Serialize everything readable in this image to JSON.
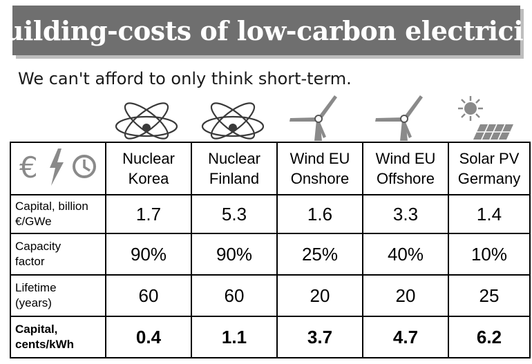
{
  "title": "Building-costs of low-carbon electricity",
  "subtitle": "We can't afford to only think short-term.",
  "chart_data": {
    "type": "table",
    "columns": [
      {
        "line1": "Nuclear",
        "line2": "Korea",
        "icon": "atom-icon"
      },
      {
        "line1": "Nuclear",
        "line2": "Finland",
        "icon": "atom-icon"
      },
      {
        "line1": "Wind EU",
        "line2": "Onshore",
        "icon": "wind-turbine-icon"
      },
      {
        "line1": "Wind EU",
        "line2": "Offshore",
        "icon": "wind-turbine-icon"
      },
      {
        "line1": "Solar PV",
        "line2": "Germany",
        "icon": "solar-panel-icon"
      }
    ],
    "header_icons": [
      "euro-icon",
      "lightning-icon",
      "clock-icon"
    ],
    "rows": [
      {
        "label_line1": "Capital, billion",
        "label_line2": "€/GWe",
        "values": [
          "1.7",
          "5.3",
          "1.6",
          "3.3",
          "1.4"
        ]
      },
      {
        "label_line1": "Capacity",
        "label_line2": "factor",
        "values": [
          "90%",
          "90%",
          "25%",
          "40%",
          "10%"
        ]
      },
      {
        "label_line1": "Lifetime",
        "label_line2": "(years)",
        "values": [
          "60",
          "60",
          "20",
          "20",
          "25"
        ]
      },
      {
        "label_line1": "Capital,",
        "label_line2": "cents/kWh",
        "values": [
          "0.4",
          "1.1",
          "3.7",
          "4.7",
          "6.2"
        ]
      }
    ]
  },
  "colors": {
    "banner": "#6f6f6f",
    "banner_shadow": "#bdbdbd",
    "icon_gray": "#8a8a8a",
    "icon_dark": "#3a3a3a"
  }
}
